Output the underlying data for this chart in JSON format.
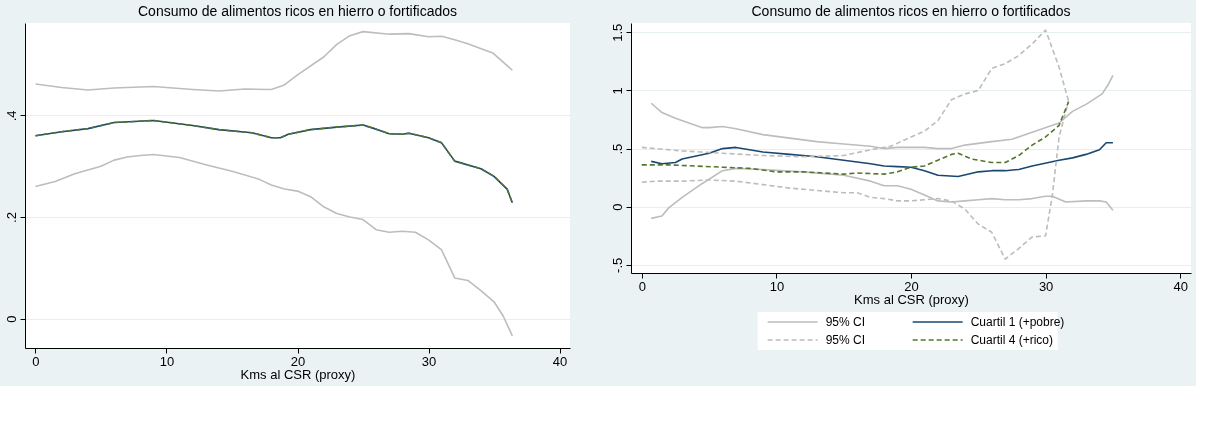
{
  "chart_data": [
    {
      "type": "line",
      "title": "Consumo de alimentos ricos en hierro o fortificados",
      "xlabel": "Kms al CSR (proxy)",
      "xlim": [
        -0.8,
        40.8
      ],
      "xticks": [
        0,
        10,
        20,
        30,
        40
      ],
      "ylim": [
        -0.058,
        0.582
      ],
      "yticks": [
        {
          "value": 0,
          "label": "0"
        },
        {
          "value": 0.2,
          "label": ".2"
        },
        {
          "value": 0.4,
          "label": ".4"
        }
      ],
      "grid": "y",
      "legend": false,
      "series": [
        {
          "color": "#bdbdbd",
          "line_style": "solid",
          "x": [
            0,
            2,
            4,
            6,
            9,
            12,
            14,
            16,
            18,
            19,
            20,
            22,
            23,
            24,
            25,
            27,
            28.5,
            30,
            31,
            32,
            33,
            34.9,
            36.4
          ],
          "values": [
            0.462,
            0.455,
            0.45,
            0.454,
            0.457,
            0.451,
            0.448,
            0.452,
            0.451,
            0.46,
            0.48,
            0.515,
            0.54,
            0.557,
            0.565,
            0.56,
            0.561,
            0.555,
            0.556,
            0.549,
            0.541,
            0.523,
            0.489
          ]
        },
        {
          "color": "#bdbdbd",
          "line_style": "solid",
          "x": [
            0,
            1.5,
            3,
            5,
            6,
            7,
            8,
            9,
            11,
            13,
            15,
            17,
            18,
            19,
            20,
            21,
            22,
            23,
            24,
            25,
            26,
            27,
            28,
            29,
            30,
            31,
            32,
            33,
            34,
            35,
            35.7,
            36.4
          ],
          "values": [
            0.26,
            0.27,
            0.285,
            0.3,
            0.312,
            0.318,
            0.321,
            0.323,
            0.317,
            0.303,
            0.29,
            0.275,
            0.263,
            0.255,
            0.251,
            0.24,
            0.22,
            0.207,
            0.2,
            0.195,
            0.175,
            0.17,
            0.172,
            0.17,
            0.155,
            0.135,
            0.08,
            0.075,
            0.055,
            0.033,
            0.005,
            -0.034
          ]
        },
        {
          "color": "#1a476f",
          "line_style": "solid",
          "x": [
            0,
            2,
            4,
            6,
            9,
            12,
            14,
            16.5,
            18,
            18.7,
            19.3,
            21,
            23,
            25,
            26,
            27,
            28,
            28.5,
            30,
            31,
            32,
            34,
            35,
            36,
            36.4
          ],
          "values": [
            0.36,
            0.368,
            0.374,
            0.386,
            0.39,
            0.38,
            0.372,
            0.366,
            0.356,
            0.356,
            0.363,
            0.372,
            0.377,
            0.381,
            0.373,
            0.364,
            0.363,
            0.365,
            0.356,
            0.346,
            0.31,
            0.295,
            0.28,
            0.255,
            0.228
          ]
        },
        {
          "color": "#55752f",
          "line_style": "dashed",
          "x": [
            0,
            2,
            4,
            6,
            9,
            12,
            14,
            16.5,
            18,
            18.7,
            19.3,
            21,
            23,
            25,
            26,
            27,
            28,
            28.5,
            30,
            31,
            32,
            34,
            35,
            36,
            36.4
          ],
          "values": [
            0.36,
            0.368,
            0.374,
            0.386,
            0.39,
            0.38,
            0.372,
            0.366,
            0.356,
            0.356,
            0.363,
            0.372,
            0.377,
            0.381,
            0.373,
            0.364,
            0.363,
            0.365,
            0.356,
            0.346,
            0.31,
            0.295,
            0.28,
            0.255,
            0.228
          ]
        }
      ]
    },
    {
      "type": "line",
      "title": "Consumo de alimentos ricos en hierro o fortificados",
      "xlabel": "Kms al CSR (proxy)",
      "xlim": [
        -0.8,
        40.8
      ],
      "xticks": [
        0,
        10,
        20,
        30,
        40
      ],
      "ylim": [
        -0.57,
        1.58
      ],
      "yticks": [
        {
          "value": -0.5,
          "label": "-.5"
        },
        {
          "value": 0,
          "label": "0"
        },
        {
          "value": 0.5,
          "label": ".5"
        },
        {
          "value": 1,
          "label": "1"
        },
        1.5
      ],
      "grid": "y",
      "legend": "bottom",
      "series": [
        {
          "name": "95% CI",
          "color": "#bdbdbd",
          "line_style": "solid",
          "x": [
            0.7,
            1.5,
            2.5,
            4.5,
            5,
            6,
            7,
            9,
            11,
            13,
            15,
            17,
            18,
            19,
            21,
            22,
            23,
            24,
            26,
            27.5,
            29,
            31,
            32,
            33,
            34.2,
            34.7,
            35
          ],
          "values": [
            0.89,
            0.81,
            0.76,
            0.68,
            0.68,
            0.69,
            0.67,
            0.62,
            0.59,
            0.56,
            0.54,
            0.52,
            0.5,
            0.51,
            0.51,
            0.5,
            0.5,
            0.53,
            0.56,
            0.58,
            0.64,
            0.72,
            0.82,
            0.88,
            0.97,
            1.06,
            1.13
          ]
        },
        {
          "color": "#bdbdbd",
          "line_style": "solid",
          "x": [
            0.7,
            1.5,
            2,
            3,
            4.5,
            6,
            7,
            9,
            12,
            15,
            17,
            18,
            19,
            20,
            21,
            22,
            23,
            24,
            25,
            26,
            27,
            28,
            29,
            30,
            30.5,
            31.5,
            33,
            34,
            34.5,
            35
          ],
          "values": [
            -0.1,
            -0.08,
            -0.01,
            0.08,
            0.2,
            0.31,
            0.33,
            0.32,
            0.3,
            0.27,
            0.22,
            0.18,
            0.18,
            0.15,
            0.1,
            0.05,
            0.04,
            0.05,
            0.06,
            0.07,
            0.06,
            0.06,
            0.07,
            0.09,
            0.09,
            0.04,
            0.05,
            0.05,
            0.04,
            -0.03
          ]
        },
        {
          "name": "Cuartil 1 (+pobre)",
          "color": "#1a476f",
          "line_style": "solid",
          "x": [
            0.7,
            1.5,
            2.5,
            3,
            5,
            6,
            7,
            8,
            9,
            11,
            13,
            15,
            17,
            18,
            19,
            20,
            21,
            22,
            23.5,
            25,
            26,
            27,
            28,
            29,
            31,
            32,
            33,
            34,
            34.5,
            35
          ],
          "values": [
            0.39,
            0.37,
            0.38,
            0.41,
            0.46,
            0.5,
            0.51,
            0.49,
            0.47,
            0.45,
            0.43,
            0.4,
            0.37,
            0.35,
            0.345,
            0.34,
            0.31,
            0.27,
            0.26,
            0.3,
            0.31,
            0.31,
            0.32,
            0.35,
            0.4,
            0.42,
            0.45,
            0.49,
            0.55,
            0.55
          ]
        },
        {
          "name": "95% CI",
          "color": "#bdbdbd",
          "line_style": "dashed",
          "x": [
            0,
            3,
            6,
            9,
            12,
            15,
            17,
            18.5,
            20,
            21,
            22,
            23,
            24,
            25,
            26,
            27,
            28,
            29,
            30,
            31,
            31.7
          ],
          "values": [
            0.51,
            0.48,
            0.46,
            0.44,
            0.43,
            0.44,
            0.49,
            0.52,
            0.6,
            0.65,
            0.74,
            0.92,
            0.97,
            1.0,
            1.19,
            1.23,
            1.3,
            1.4,
            1.52,
            1.2,
            0.91
          ]
        },
        {
          "color": "#bdbdbd",
          "line_style": "dashed",
          "x": [
            0,
            1,
            3,
            5,
            7,
            9,
            11,
            13,
            15,
            16,
            17,
            18,
            19,
            20,
            22,
            23,
            24,
            25,
            26,
            27,
            28,
            29,
            30,
            30.5,
            31,
            31.7
          ],
          "values": [
            0.21,
            0.22,
            0.22,
            0.23,
            0.22,
            0.19,
            0.16,
            0.14,
            0.12,
            0.12,
            0.08,
            0.07,
            0.05,
            0.05,
            0.07,
            0.05,
            -0.02,
            -0.15,
            -0.22,
            -0.45,
            -0.36,
            -0.26,
            -0.25,
            0.1,
            0.6,
            0.91
          ]
        },
        {
          "name": "Cuartil 4 (+rico)",
          "color": "#55752f",
          "line_style": "dashed",
          "x": [
            0,
            2,
            4,
            6,
            8,
            10,
            12,
            15,
            16,
            18,
            19,
            20,
            21,
            22,
            23,
            23.5,
            24.5,
            26,
            27,
            28,
            29,
            30,
            31,
            31.7
          ],
          "values": [
            0.36,
            0.36,
            0.35,
            0.34,
            0.33,
            0.3,
            0.3,
            0.28,
            0.29,
            0.28,
            0.3,
            0.34,
            0.35,
            0.4,
            0.45,
            0.46,
            0.41,
            0.38,
            0.38,
            0.44,
            0.53,
            0.6,
            0.7,
            0.9
          ]
        }
      ]
    }
  ]
}
